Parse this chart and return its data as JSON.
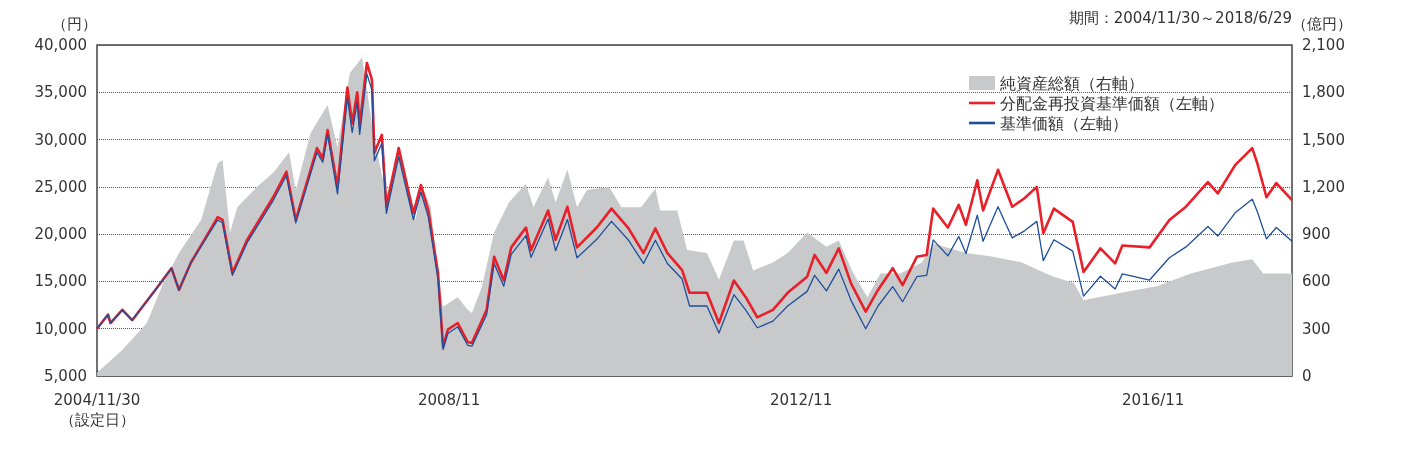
{
  "chart_data": {
    "type": "line",
    "ylabel": "（円）",
    "y2label": "（億円）",
    "annotations": [
      "期間：2004/11/30～2018/6/29"
    ],
    "xlim": [
      "2004-11-30",
      "2018-06-29"
    ],
    "xticks": [
      {
        "value": "2004-11-30",
        "label": "2004/11/30\n（設定日）"
      },
      {
        "value": "2008-11-30",
        "label": "2008/11"
      },
      {
        "value": "2012-11-30",
        "label": "2012/11"
      },
      {
        "value": "2016-11-30",
        "label": "2016/11"
      }
    ],
    "ylim": [
      5000,
      40000
    ],
    "yticks": [
      {
        "value": 5000,
        "label": "5,000"
      },
      {
        "value": 10000,
        "label": "10,000"
      },
      {
        "value": 15000,
        "label": "15,000"
      },
      {
        "value": 20000,
        "label": "20,000"
      },
      {
        "value": 25000,
        "label": "25,000"
      },
      {
        "value": 30000,
        "label": "30,000"
      },
      {
        "value": 35000,
        "label": "35,000"
      },
      {
        "value": 40000,
        "label": "40,000"
      }
    ],
    "y2lim": [
      0,
      2100
    ],
    "y2ticks": [
      0,
      300,
      600,
      900,
      {
        "value": 1200,
        "label": "1,200"
      },
      {
        "value": 1500,
        "label": "1,500"
      },
      {
        "value": 1800,
        "label": "1,800"
      },
      {
        "value": 2100,
        "label": "2,100"
      }
    ],
    "grid": "y",
    "legend": "top right",
    "marker": "none",
    "line_style": "solid",
    "series": [
      {
        "name": "純資産総額（右軸）",
        "type": "area",
        "axis": "y2",
        "color": "#c8c9ca",
        "x": [
          "2004-11-30",
          "2005-03-15",
          "2005-06-25",
          "2005-09-01",
          "2005-11-05",
          "2006-02-05",
          "2006-04-15",
          "2006-05-05",
          "2006-06-05",
          "2006-07-05",
          "2006-09-25",
          "2006-12-01",
          "2007-02-05",
          "2007-03-05",
          "2007-05-05",
          "2007-07-15",
          "2007-08-25",
          "2007-10-15",
          "2007-12-05",
          "2008-01-25",
          "2008-03-15",
          "2008-05-05",
          "2008-07-15",
          "2008-08-05",
          "2008-09-15",
          "2008-10-15",
          "2008-11-05",
          "2009-01-05",
          "2009-02-15",
          "2009-03-05",
          "2009-04-15",
          "2009-06-05",
          "2009-08-05",
          "2009-10-15",
          "2009-11-15",
          "2010-01-15",
          "2010-02-15",
          "2010-04-05",
          "2010-05-15",
          "2010-06-25",
          "2010-09-25",
          "2010-11-15",
          "2011-02-05",
          "2011-04-05",
          "2011-04-25",
          "2011-07-05",
          "2011-08-15",
          "2011-11-05",
          "2011-12-25",
          "2012-02-25",
          "2012-04-05",
          "2012-05-15",
          "2012-08-05",
          "2012-10-05",
          "2012-12-25",
          "2013-03-15",
          "2013-05-05",
          "2013-07-05",
          "2013-09-01",
          "2013-10-25",
          "2014-01-15",
          "2014-04-15",
          "2014-06-01",
          "2014-10-15",
          "2015-01-25",
          "2015-06-05",
          "2015-08-15",
          "2015-10-15",
          "2016-01-05",
          "2016-02-15",
          "2016-07-25",
          "2016-12-15",
          "2017-05-05",
          "2017-10-25",
          "2018-01-15",
          "2018-03-01",
          "2018-06-29"
        ],
        "values": [
          20,
          165,
          336,
          590,
          780,
          990,
          1350,
          1370,
          910,
          1070,
          1200,
          1290,
          1420,
          1180,
          1540,
          1720,
          1450,
          1920,
          2020,
          1500,
          1140,
          1450,
          990,
          1220,
          1070,
          650,
          440,
          500,
          420,
          400,
          565,
          910,
          1100,
          1220,
          1070,
          1260,
          1100,
          1310,
          1070,
          1180,
          1200,
          1070,
          1070,
          1190,
          1050,
          1050,
          800,
          780,
          610,
          860,
          860,
          670,
          720,
          780,
          910,
          820,
          860,
          650,
          500,
          650,
          650,
          720,
          840,
          780,
          760,
          720,
          670,
          630,
          590,
          480,
          530,
          570,
          650,
          720,
          740,
          650,
          650
        ]
      },
      {
        "name": "分配金再投資基準価額（左軸）",
        "color": "#e8202a",
        "x": [
          "2004-11-30",
          "2005-01-15",
          "2005-01-25",
          "2005-03-15",
          "2005-04-25",
          "2005-08-05",
          "2005-10-05",
          "2005-11-05",
          "2005-12-25",
          "2006-04-15",
          "2006-05-05",
          "2006-06-15",
          "2006-08-15",
          "2006-12-01",
          "2007-01-25",
          "2007-03-05",
          "2007-06-01",
          "2007-06-25",
          "2007-07-15",
          "2007-08-25",
          "2007-10-05",
          "2007-10-25",
          "2007-11-15",
          "2007-11-25",
          "2007-12-25",
          "2008-01-15",
          "2008-01-25",
          "2008-02-25",
          "2008-03-15",
          "2008-05-05",
          "2008-07-05",
          "2008-08-05",
          "2008-09-05",
          "2008-10-15",
          "2008-11-05",
          "2008-11-25",
          "2009-01-05",
          "2009-02-15",
          "2009-03-05",
          "2009-05-05",
          "2009-06-05",
          "2009-07-15",
          "2009-08-15",
          "2009-10-15",
          "2009-11-05",
          "2010-01-15",
          "2010-02-15",
          "2010-04-05",
          "2010-05-15",
          "2010-08-05",
          "2010-10-05",
          "2010-12-15",
          "2011-02-15",
          "2011-04-05",
          "2011-05-25",
          "2011-07-25",
          "2011-08-25",
          "2011-11-05",
          "2011-12-25",
          "2012-02-25",
          "2012-04-15",
          "2012-06-01",
          "2012-08-05",
          "2012-10-05",
          "2012-12-25",
          "2013-01-25",
          "2013-03-15",
          "2013-05-05",
          "2013-06-25",
          "2013-08-25",
          "2013-10-15",
          "2013-12-15",
          "2014-01-25",
          "2014-03-25",
          "2014-05-05",
          "2014-06-01",
          "2014-08-01",
          "2014-09-15",
          "2014-10-15",
          "2014-12-01",
          "2014-12-25",
          "2015-02-25",
          "2015-04-25",
          "2015-06-15",
          "2015-08-05",
          "2015-09-01",
          "2015-10-15",
          "2016-01-01",
          "2016-02-15",
          "2016-04-25",
          "2016-06-25",
          "2016-07-25",
          "2016-11-15",
          "2017-02-05",
          "2017-04-15",
          "2017-07-15",
          "2017-08-25",
          "2017-11-05",
          "2018-01-15",
          "2018-02-05",
          "2018-03-15",
          "2018-04-25",
          "2018-06-29"
        ],
        "values": [
          10000,
          11500,
          10600,
          12000,
          10900,
          14300,
          16400,
          14100,
          17000,
          21800,
          21500,
          15900,
          19400,
          23900,
          26600,
          21500,
          29100,
          28000,
          31000,
          25000,
          35500,
          31700,
          35000,
          31500,
          38100,
          36300,
          28600,
          30500,
          22900,
          29100,
          22200,
          25200,
          22500,
          15900,
          8100,
          9900,
          10600,
          8600,
          8500,
          12000,
          17600,
          15100,
          18600,
          20700,
          18300,
          22500,
          19400,
          22900,
          18600,
          20700,
          22700,
          20600,
          18000,
          20600,
          18000,
          16200,
          13800,
          13800,
          10600,
          15100,
          13300,
          11200,
          12000,
          13800,
          15500,
          17800,
          15900,
          18500,
          14800,
          11800,
          14100,
          16400,
          14600,
          17600,
          17800,
          22700,
          20700,
          23100,
          21000,
          25700,
          22500,
          26800,
          22900,
          23800,
          25000,
          20100,
          22700,
          21300,
          16000,
          18500,
          16900,
          18800,
          18600,
          21500,
          22900,
          25500,
          24300,
          27300,
          29100,
          27500,
          23900,
          25400,
          23600
        ]
      },
      {
        "name": "基準価額（左軸）",
        "color": "#1f4e9c",
        "x": [
          "2004-11-30",
          "2005-01-15",
          "2005-01-25",
          "2005-03-15",
          "2005-04-25",
          "2005-08-05",
          "2005-10-05",
          "2005-11-05",
          "2005-12-25",
          "2006-04-15",
          "2006-05-05",
          "2006-06-15",
          "2006-08-15",
          "2006-12-01",
          "2007-01-25",
          "2007-03-05",
          "2007-06-01",
          "2007-06-25",
          "2007-07-15",
          "2007-08-25",
          "2007-10-05",
          "2007-10-25",
          "2007-11-15",
          "2007-11-25",
          "2007-12-25",
          "2008-01-15",
          "2008-01-25",
          "2008-02-25",
          "2008-03-15",
          "2008-05-05",
          "2008-07-05",
          "2008-08-05",
          "2008-09-05",
          "2008-10-15",
          "2008-11-05",
          "2008-11-25",
          "2009-01-05",
          "2009-02-15",
          "2009-03-05",
          "2009-05-05",
          "2009-06-05",
          "2009-07-15",
          "2009-08-15",
          "2009-10-15",
          "2009-11-05",
          "2010-01-15",
          "2010-02-15",
          "2010-04-05",
          "2010-05-15",
          "2010-08-05",
          "2010-10-05",
          "2010-12-15",
          "2011-02-15",
          "2011-04-05",
          "2011-05-25",
          "2011-07-25",
          "2011-08-25",
          "2011-11-05",
          "2011-12-25",
          "2012-02-25",
          "2012-04-15",
          "2012-06-01",
          "2012-08-05",
          "2012-10-05",
          "2012-12-25",
          "2013-01-25",
          "2013-03-15",
          "2013-05-05",
          "2013-06-25",
          "2013-08-25",
          "2013-10-15",
          "2013-12-15",
          "2014-01-25",
          "2014-03-25",
          "2014-05-05",
          "2014-06-01",
          "2014-08-01",
          "2014-09-15",
          "2014-10-15",
          "2014-12-01",
          "2014-12-25",
          "2015-02-25",
          "2015-04-25",
          "2015-06-15",
          "2015-08-05",
          "2015-09-01",
          "2015-10-15",
          "2016-01-01",
          "2016-02-15",
          "2016-04-25",
          "2016-06-25",
          "2016-07-25",
          "2016-11-15",
          "2017-02-05",
          "2017-04-15",
          "2017-07-15",
          "2017-08-25",
          "2017-11-05",
          "2018-01-15",
          "2018-02-05",
          "2018-03-15",
          "2018-04-25",
          "2018-06-29"
        ],
        "values": [
          10000,
          11500,
          10600,
          12000,
          10900,
          14300,
          16400,
          14100,
          17000,
          21500,
          21200,
          15650,
          19100,
          23550,
          26200,
          21200,
          28650,
          27600,
          30550,
          24250,
          34450,
          30750,
          33950,
          30550,
          36950,
          35200,
          27750,
          29600,
          22200,
          28200,
          21550,
          24450,
          21800,
          15250,
          7800,
          9500,
          10200,
          8250,
          8150,
          11500,
          16900,
          14500,
          17850,
          19850,
          17550,
          21600,
          18250,
          21550,
          17500,
          19450,
          21350,
          19350,
          16900,
          19350,
          16900,
          15250,
          12400,
          12400,
          9550,
          13600,
          11950,
          10100,
          10800,
          12400,
          13950,
          15650,
          14000,
          16300,
          13000,
          10000,
          12400,
          14450,
          12850,
          15500,
          15650,
          19400,
          17700,
          19750,
          17950,
          22000,
          19250,
          22900,
          19600,
          20350,
          21350,
          17200,
          19400,
          18200,
          13450,
          15550,
          14200,
          15800,
          15150,
          17500,
          18650,
          20800,
          19800,
          22250,
          23700,
          22400,
          19500,
          20700,
          19250
        ]
      }
    ]
  }
}
